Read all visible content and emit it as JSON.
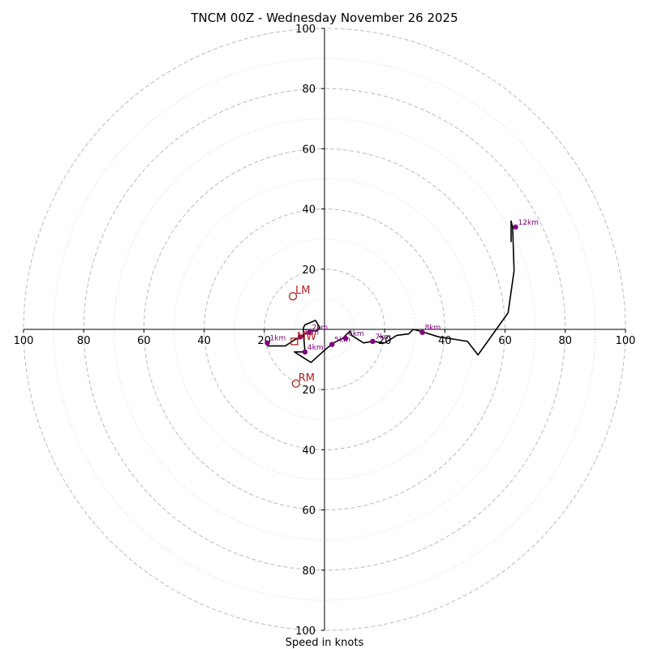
{
  "title": "TNCM 00Z - Wednesday November 26 2025",
  "xlabel": "Speed in knots",
  "chart_data": {
    "type": "hodograph",
    "title": "TNCM 00Z - Wednesday November 26 2025",
    "xlabel": "Speed in knots",
    "range": [
      -100,
      100
    ],
    "rings_dashed": [
      20,
      40,
      60,
      80,
      100
    ],
    "rings_dotted": [
      10,
      30,
      50,
      70,
      90
    ],
    "x_tick_labels": [
      "100",
      "80",
      "60",
      "40",
      "20",
      "20",
      "40",
      "60",
      "80",
      "100"
    ],
    "x_tick_values": [
      -100,
      -80,
      -60,
      -40,
      -20,
      20,
      40,
      60,
      80,
      100
    ],
    "y_tick_labels": [
      "100",
      "80",
      "60",
      "40",
      "20",
      "20",
      "40",
      "60",
      "80",
      "100"
    ],
    "y_tick_values": [
      100,
      80,
      60,
      40,
      20,
      -20,
      -40,
      -60,
      -80,
      -100
    ],
    "trace": [
      [
        -19,
        -5.5
      ],
      [
        -13,
        -5.5
      ],
      [
        -10,
        -3.5
      ],
      [
        -8,
        -2.5
      ],
      [
        -6.5,
        -1.5
      ],
      [
        -4.5,
        -0.5
      ],
      [
        -2.5,
        -0.5
      ],
      [
        -1.5,
        0.5
      ],
      [
        -3,
        3
      ],
      [
        -6.5,
        1.5
      ],
      [
        -7,
        0.5
      ],
      [
        -7,
        -1
      ],
      [
        -6.5,
        -7.5
      ],
      [
        -10,
        -7.5
      ],
      [
        -4.5,
        -11
      ],
      [
        0.5,
        -6.5
      ],
      [
        3,
        -4.5
      ],
      [
        6,
        -3
      ],
      [
        7,
        -2
      ],
      [
        8.5,
        -0.5
      ],
      [
        9,
        -2
      ],
      [
        13,
        -4.5
      ],
      [
        16,
        -4
      ],
      [
        20,
        -4.5
      ],
      [
        24,
        -2
      ],
      [
        28,
        -1.5
      ],
      [
        29.5,
        0
      ],
      [
        31.5,
        -0.5
      ],
      [
        38,
        -2.5
      ],
      [
        44.5,
        -3.5
      ],
      [
        47.5,
        -4
      ],
      [
        51,
        -8.5
      ],
      [
        61,
        5.5
      ],
      [
        63,
        19.5
      ],
      [
        62.5,
        34
      ],
      [
        62,
        36
      ],
      [
        62,
        29
      ]
    ],
    "height_markers": [
      {
        "label": "1km",
        "u": -19,
        "v": -4.5
      },
      {
        "label": "2km",
        "u": -5,
        "v": -1
      },
      {
        "label": "3km",
        "u": -8,
        "v": -2.5
      },
      {
        "label": "4km",
        "u": -6.5,
        "v": -7.5
      },
      {
        "label": "5km",
        "u": 2.5,
        "v": -5
      },
      {
        "label": "6km",
        "u": 7,
        "v": -3
      },
      {
        "label": "7km",
        "u": 16,
        "v": -4
      },
      {
        "label": "8km",
        "u": 32.5,
        "v": -1
      },
      {
        "label": "12km",
        "u": 63.5,
        "v": 34
      }
    ],
    "storm_motion": [
      {
        "label": "LM",
        "u": -10.5,
        "v": 11
      },
      {
        "label": "RM",
        "u": -9.5,
        "v": -18
      }
    ],
    "mean_wind": {
      "label": "MW",
      "u": -10,
      "v": -4
    },
    "colors": {
      "trace": "#000000",
      "marker": "#800080",
      "storm": "#b22222",
      "grid": "#bbbbbb"
    }
  }
}
